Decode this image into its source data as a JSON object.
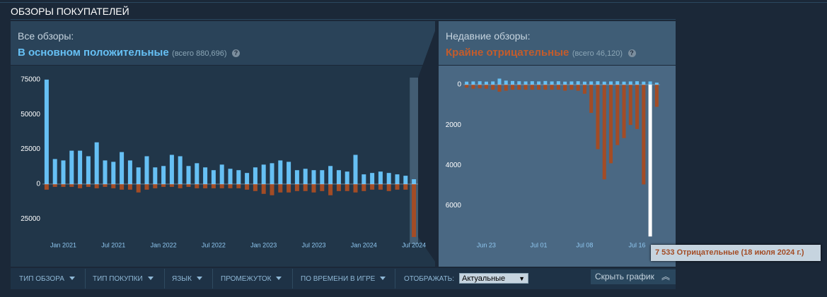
{
  "header": {
    "title": "ОБЗОРЫ ПОКУПАТЕЛЕЙ"
  },
  "help_icon": "?",
  "chart_data": [
    {
      "type": "bar",
      "title": "Все обзоры:",
      "subtitle": "В основном положительные",
      "note": "(всего 880,696)",
      "categories": [
        null,
        null,
        "Jan 2021",
        null,
        null,
        null,
        null,
        null,
        "Jul 2021",
        null,
        null,
        null,
        null,
        null,
        "Jan 2022",
        null,
        null,
        null,
        null,
        null,
        "Jul 2022",
        null,
        null,
        null,
        null,
        null,
        "Jan 2023",
        null,
        null,
        null,
        null,
        null,
        "Jul 2023",
        null,
        null,
        null,
        null,
        null,
        "Jan 2024",
        null,
        null,
        null,
        null,
        null,
        "Jul 2024"
      ],
      "series": [
        {
          "color": "#66c0f4",
          "values": [
            75000,
            18000,
            17000,
            24000,
            24000,
            20000,
            30000,
            17000,
            16000,
            23000,
            17000,
            12000,
            20000,
            12000,
            13000,
            21000,
            20000,
            13000,
            15000,
            12000,
            10000,
            14000,
            11000,
            10000,
            8000,
            12000,
            14000,
            15000,
            17000,
            16000,
            10000,
            11000,
            10000,
            10000,
            13000,
            10000,
            9000,
            21000,
            7000,
            8000,
            9000,
            8000,
            7000,
            6000,
            3500
          ]
        },
        {
          "color": "#a34c25",
          "values": [
            -4000,
            -2000,
            -2000,
            -2000,
            -3000,
            -2000,
            -3000,
            -2000,
            -3000,
            -4000,
            -4000,
            -6000,
            -4000,
            -3000,
            -2000,
            -2000,
            -3000,
            -2000,
            -3000,
            -3000,
            -3000,
            -3000,
            -3000,
            -3000,
            -4000,
            -5000,
            -7000,
            -8000,
            -6000,
            -6000,
            -5000,
            -5000,
            -6000,
            -5000,
            -8000,
            -5000,
            -5000,
            -6000,
            -5000,
            -4000,
            -4000,
            -5000,
            -4000,
            -4000,
            -38000
          ]
        }
      ],
      "ylim": [
        -39000,
        81500
      ],
      "yticks": [
        75000,
        50000,
        25000,
        0,
        {
          "value": -25000,
          "label": "25000"
        }
      ],
      "grid": false
    },
    {
      "type": "bar",
      "title": "Недавние обзоры:",
      "subtitle": "Крайне отрицательные",
      "note": "(всего 46,120)",
      "categories": [
        null,
        null,
        null,
        "Jun 23",
        null,
        null,
        null,
        null,
        null,
        null,
        null,
        "Jul 01",
        null,
        null,
        null,
        null,
        null,
        null,
        "Jul 08",
        null,
        null,
        null,
        null,
        null,
        null,
        null,
        "Jul 16",
        null,
        null,
        null
      ],
      "series": [
        {
          "color": "#66c0f4",
          "values": [
            150,
            160,
            170,
            150,
            160,
            300,
            200,
            180,
            170,
            160,
            170,
            160,
            180,
            160,
            170,
            150,
            160,
            170,
            150,
            160,
            170,
            150,
            160,
            170,
            150,
            160,
            170,
            150,
            160,
            100
          ]
        },
        {
          "color": "#a34c25",
          "values": [
            -150,
            -200,
            -180,
            -200,
            -250,
            -350,
            -300,
            -250,
            -250,
            -250,
            -250,
            -250,
            -250,
            -250,
            -250,
            -300,
            -250,
            -300,
            -450,
            -1400,
            -3200,
            -4700,
            -3900,
            -3000,
            -2650,
            -2000,
            -2200,
            -4950,
            -7533,
            -1100
          ]
        }
      ],
      "highlight": {
        "index": 28,
        "color": "#ffffff"
      },
      "annotation": "7 533 Отрицательные (18 июля 2024 г.)",
      "ylim": [
        -7700,
        700
      ],
      "yticks": [
        0,
        {
          "value": -2000,
          "label": "2000"
        },
        {
          "value": -4000,
          "label": "4000"
        },
        {
          "value": -6000,
          "label": "6000"
        }
      ],
      "grid": false
    }
  ],
  "filters": [
    "ТИП ОБЗОРА",
    "ТИП ПОКУПКИ",
    "ЯЗЫК",
    "ПРОМЕЖУТОК",
    "ПО ВРЕМЕНИ В ИГРЕ"
  ],
  "display_label": "ОТОБРАЖАТЬ:",
  "display_value": "Актуальные",
  "hide_button": "Скрыть график"
}
